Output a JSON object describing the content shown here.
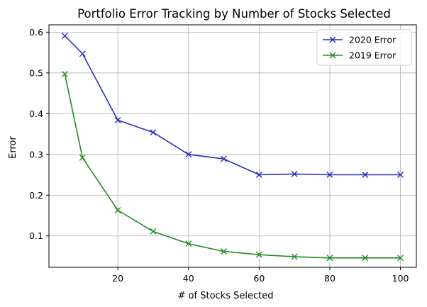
{
  "chart_data": {
    "type": "line",
    "title": "Portfolio Error Tracking by Number of Stocks Selected",
    "xlabel": "# of Stocks Selected",
    "ylabel": "Error",
    "x": [
      5,
      10,
      20,
      30,
      40,
      50,
      60,
      70,
      80,
      90,
      100
    ],
    "xlim": [
      0.5,
      104.5
    ],
    "ylim": [
      0.023,
      0.618
    ],
    "xticks": [
      20,
      40,
      60,
      80,
      100
    ],
    "yticks": [
      0.1,
      0.2,
      0.3,
      0.4,
      0.5,
      0.6
    ],
    "ytick_labels": [
      "0.1",
      "0.2",
      "0.3",
      "0.4",
      "0.5",
      "0.6"
    ],
    "grid": true,
    "legend_position": "top-right",
    "marker": "x",
    "series": [
      {
        "name": "2020 Error",
        "color": "#2a2fbf",
        "values": [
          0.591,
          0.547,
          0.384,
          0.354,
          0.3,
          0.289,
          0.25,
          0.252,
          0.25,
          0.25,
          0.25
        ]
      },
      {
        "name": "2019 Error",
        "color": "#228b22",
        "values": [
          0.497,
          0.292,
          0.163,
          0.111,
          0.081,
          0.062,
          0.054,
          0.049,
          0.046,
          0.046,
          0.046
        ]
      }
    ]
  }
}
